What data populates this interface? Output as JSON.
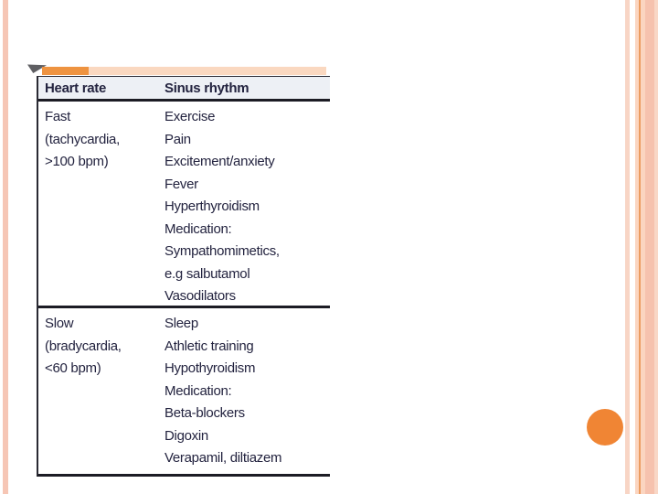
{
  "table": {
    "headers": [
      "Heart rate",
      "Sinus rhythm"
    ],
    "rows": [
      {
        "heart_rate": [
          "Fast",
          "(tachycardia,",
          ">100 bpm)"
        ],
        "sinus_rhythm": [
          "Exercise",
          "Pain",
          "Excitement/anxiety",
          "Fever",
          "Hyperthyroidism",
          "Medication:",
          "Sympathomimetics,",
          "e.g salbutamol",
          "Vasodilators"
        ]
      },
      {
        "heart_rate": [
          "Slow",
          "(bradycardia,",
          "<60 bpm)"
        ],
        "sinus_rhythm": [
          "Sleep",
          "Athletic training",
          "Hypothyroidism",
          "Medication:",
          "Beta-blockers",
          "Digoxin",
          "Verapamil, diltiazem"
        ]
      }
    ]
  },
  "colors": {
    "accent_orange_dark": "#ee9340",
    "accent_bar_light": "#fad8c0",
    "edge_stripe_light": "#f8d5c5",
    "edge_stripe_medium": "#f6c2ae",
    "edge_stripe_line": "#ec9c60",
    "circle_orange": "#f08534",
    "header_row_bg": "#edf0f5",
    "text_dark": "#23233f",
    "rule_dark": "#1c1c24",
    "triangle_gray": "#5f5f63"
  }
}
